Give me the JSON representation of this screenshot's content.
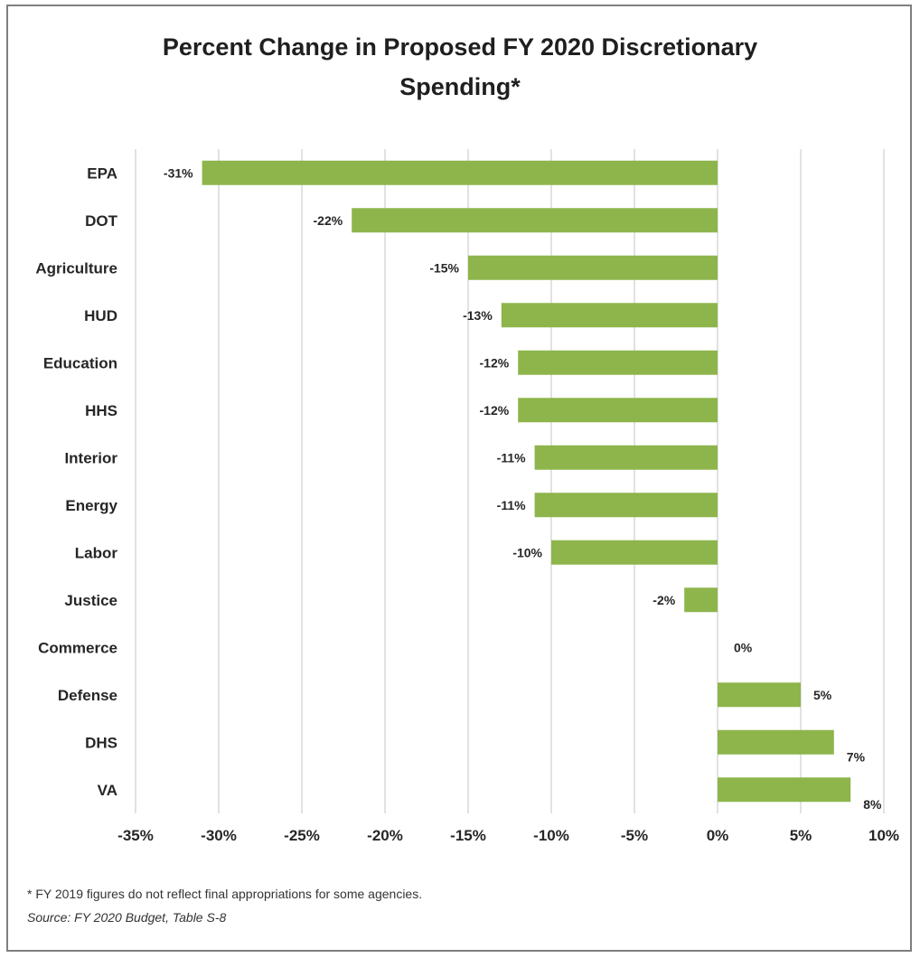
{
  "chart_data": {
    "type": "bar",
    "orientation": "horizontal",
    "title_line1": "Percent Change in Proposed FY 2020 Discretionary",
    "title_line2": "Spending*",
    "categories": [
      "EPA",
      "DOT",
      "Agriculture",
      "HUD",
      "Education",
      "HHS",
      "Interior",
      "Energy",
      "Labor",
      "Justice",
      "Commerce",
      "Defense",
      "DHS",
      "VA"
    ],
    "values": [
      -31,
      -22,
      -15,
      -13,
      -12,
      -12,
      -11,
      -11,
      -10,
      -2,
      0,
      5,
      7,
      8
    ],
    "data_labels": [
      "-31%",
      "-22%",
      "-15%",
      "-13%",
      "-12%",
      "-12%",
      "-11%",
      "-11%",
      "-10%",
      "-2%",
      "0%",
      "5%",
      "7%",
      "8%"
    ],
    "xlim": [
      -35,
      10
    ],
    "x_ticks": [
      -35,
      -30,
      -25,
      -20,
      -15,
      -10,
      -5,
      0,
      5,
      10
    ],
    "x_tick_labels": [
      "-35%",
      "-30%",
      "-25%",
      "-20%",
      "-15%",
      "-10%",
      "-5%",
      "0%",
      "5%",
      "10%"
    ],
    "grid": "vertical",
    "bar_color": "#8db54b",
    "grid_color": "#d9d9d9"
  },
  "footnote": {
    "note": "* FY 2019 figures do not reflect final appropriations for some agencies.",
    "source": "Source: FY 2020 Budget, Table S-8"
  }
}
